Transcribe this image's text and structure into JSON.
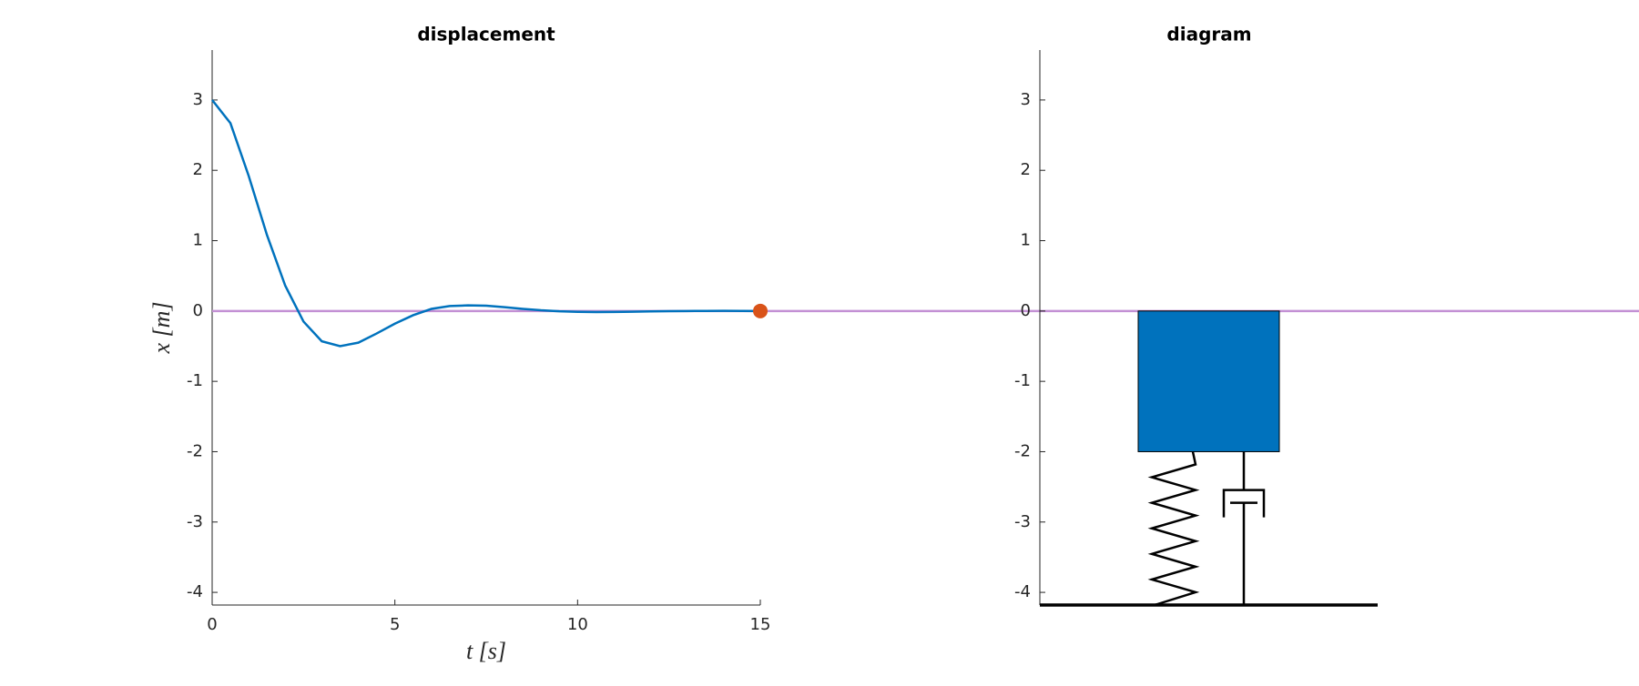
{
  "chart_data": [
    {
      "type": "line",
      "title": "displacement",
      "xlabel": "t [s]",
      "ylabel": "x [m]",
      "x": [
        0,
        0.5,
        1,
        1.5,
        2,
        2.5,
        3,
        3.5,
        4,
        4.5,
        5,
        5.5,
        6,
        6.5,
        7,
        7.5,
        8,
        8.5,
        9,
        9.5,
        10,
        10.5,
        11,
        11.5,
        12,
        12.5,
        13,
        13.5,
        14,
        14.5,
        15
      ],
      "series": [
        {
          "color": "#0072bd",
          "values": [
            3,
            2.67,
            1.92,
            1.08,
            0.36,
            -0.15,
            -0.43,
            -0.5,
            -0.45,
            -0.32,
            -0.18,
            -0.06,
            0.03,
            0.07,
            0.08,
            0.075,
            0.054,
            0.03,
            0.01,
            -0.004,
            -0.012,
            -0.015,
            -0.014,
            -0.01,
            -0.006,
            -0.002,
            0,
            0.001,
            0.002,
            0.001,
            0
          ]
        }
      ],
      "marker": {
        "x": 15,
        "y": 0,
        "color": "#d95319"
      },
      "reference_y": 0,
      "reference_color": "#c390d4",
      "xlim": [
        0,
        15
      ],
      "xticks": [
        0,
        5,
        10,
        15
      ],
      "ylim": [
        -4.18,
        3.71
      ],
      "yticks": [
        -4,
        -3,
        -2,
        -1,
        0,
        1,
        2,
        3
      ]
    },
    {
      "type": "diagram",
      "title": "diagram",
      "mass": {
        "top": 0,
        "bottom": -2,
        "color": "#0072bd"
      },
      "ylim": [
        -4.18,
        3.71
      ],
      "yticks": [
        -4,
        -3,
        -2,
        -1,
        0,
        1,
        2,
        3
      ]
    }
  ]
}
